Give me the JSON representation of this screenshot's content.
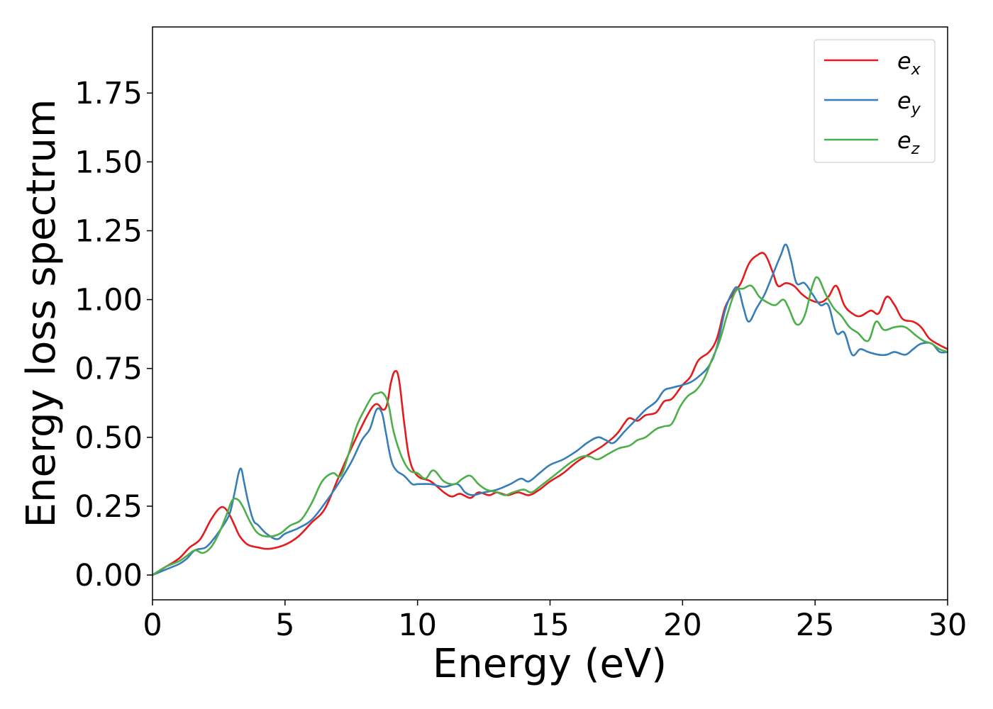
{
  "chart_data": {
    "type": "line",
    "title": "",
    "xlabel": "Energy (eV)",
    "ylabel": "Energy loss spectrum",
    "xlim": [
      0,
      30
    ],
    "ylim": [
      -0.09,
      1.99
    ],
    "xticks": [
      "0",
      "5",
      "10",
      "15",
      "20",
      "25",
      "30"
    ],
    "yticks": [
      "0.00",
      "0.25",
      "0.50",
      "0.75",
      "1.00",
      "1.25",
      "1.50",
      "1.75"
    ],
    "grid": false,
    "legend_position": "top-right",
    "series": [
      {
        "name": "e_x",
        "label_main": "e",
        "label_sub": "x",
        "color": "#e41a1c",
        "x": [
          0,
          0.5,
          1.0,
          1.4,
          1.8,
          2.2,
          2.5,
          2.7,
          2.9,
          3.1,
          3.3,
          3.6,
          4.0,
          4.4,
          5.0,
          5.5,
          6.0,
          6.5,
          7.0,
          7.5,
          8.0,
          8.3,
          8.5,
          8.7,
          8.85,
          9.0,
          9.15,
          9.3,
          9.5,
          9.7,
          10.0,
          10.5,
          11.0,
          11.3,
          11.6,
          12.0,
          12.3,
          12.7,
          13.0,
          13.4,
          13.8,
          14.2,
          14.6,
          15.0,
          15.5,
          16.0,
          16.5,
          17.0,
          17.5,
          17.8,
          18.0,
          18.3,
          18.6,
          19.0,
          19.3,
          19.6,
          20.0,
          20.3,
          20.6,
          21.0,
          21.3,
          21.6,
          21.9,
          22.2,
          22.5,
          22.8,
          23.1,
          23.4,
          23.6,
          23.9,
          24.2,
          24.5,
          24.8,
          25.2,
          25.5,
          25.8,
          26.1,
          26.4,
          26.7,
          27.1,
          27.4,
          27.7,
          28.0,
          28.3,
          28.7,
          29.0,
          29.3,
          29.6,
          30.0
        ],
        "y": [
          0.0,
          0.03,
          0.06,
          0.1,
          0.13,
          0.2,
          0.24,
          0.245,
          0.22,
          0.18,
          0.14,
          0.11,
          0.1,
          0.095,
          0.11,
          0.14,
          0.19,
          0.24,
          0.35,
          0.46,
          0.56,
          0.61,
          0.62,
          0.6,
          0.62,
          0.7,
          0.74,
          0.71,
          0.55,
          0.42,
          0.36,
          0.34,
          0.3,
          0.285,
          0.295,
          0.28,
          0.3,
          0.29,
          0.3,
          0.29,
          0.3,
          0.29,
          0.31,
          0.34,
          0.37,
          0.41,
          0.44,
          0.47,
          0.51,
          0.55,
          0.57,
          0.56,
          0.58,
          0.59,
          0.63,
          0.64,
          0.69,
          0.72,
          0.78,
          0.81,
          0.86,
          0.97,
          1.02,
          1.06,
          1.13,
          1.16,
          1.165,
          1.1,
          1.05,
          1.06,
          1.05,
          1.02,
          1.0,
          0.99,
          1.01,
          1.05,
          0.98,
          0.95,
          0.94,
          0.96,
          0.95,
          1.01,
          0.98,
          0.93,
          0.92,
          0.9,
          0.86,
          0.84,
          0.82
        ]
      },
      {
        "name": "e_y",
        "label_main": "e",
        "label_sub": "y",
        "color": "#377eb8",
        "x": [
          0,
          0.5,
          1.0,
          1.3,
          1.6,
          2.0,
          2.3,
          2.6,
          2.9,
          3.1,
          3.25,
          3.35,
          3.45,
          3.6,
          3.8,
          4.0,
          4.3,
          4.7,
          5.0,
          5.5,
          6.0,
          6.5,
          7.0,
          7.5,
          7.9,
          8.2,
          8.45,
          8.65,
          8.8,
          9.0,
          9.2,
          9.5,
          9.8,
          10.0,
          10.5,
          11.0,
          11.5,
          11.8,
          12.1,
          12.5,
          13.0,
          13.5,
          13.9,
          14.2,
          14.6,
          15.0,
          15.5,
          16.0,
          16.4,
          16.8,
          17.1,
          17.4,
          17.8,
          18.2,
          18.6,
          19.0,
          19.3,
          19.6,
          20.0,
          20.3,
          20.6,
          21.0,
          21.3,
          21.6,
          21.9,
          22.1,
          22.3,
          22.5,
          22.8,
          23.1,
          23.4,
          23.7,
          23.9,
          24.1,
          24.3,
          24.6,
          24.9,
          25.2,
          25.5,
          25.8,
          26.1,
          26.4,
          26.7,
          27.0,
          27.4,
          27.7,
          28.0,
          28.4,
          28.7,
          29.0,
          29.4,
          29.7,
          30.0
        ],
        "y": [
          0.0,
          0.02,
          0.04,
          0.06,
          0.09,
          0.1,
          0.13,
          0.17,
          0.22,
          0.3,
          0.37,
          0.385,
          0.34,
          0.27,
          0.2,
          0.18,
          0.15,
          0.13,
          0.15,
          0.17,
          0.2,
          0.26,
          0.33,
          0.41,
          0.49,
          0.53,
          0.6,
          0.59,
          0.52,
          0.42,
          0.38,
          0.36,
          0.33,
          0.33,
          0.33,
          0.32,
          0.33,
          0.3,
          0.29,
          0.3,
          0.31,
          0.33,
          0.35,
          0.34,
          0.37,
          0.4,
          0.42,
          0.45,
          0.48,
          0.5,
          0.49,
          0.48,
          0.52,
          0.56,
          0.6,
          0.63,
          0.67,
          0.68,
          0.69,
          0.7,
          0.72,
          0.76,
          0.83,
          0.96,
          1.03,
          1.04,
          0.97,
          0.92,
          0.97,
          1.02,
          1.09,
          1.16,
          1.2,
          1.14,
          1.06,
          1.06,
          1.02,
          0.98,
          0.98,
          0.88,
          0.88,
          0.8,
          0.82,
          0.81,
          0.8,
          0.8,
          0.81,
          0.8,
          0.82,
          0.84,
          0.84,
          0.81,
          0.81
        ]
      },
      {
        "name": "e_z",
        "label_main": "e",
        "label_sub": "z",
        "color": "#4daf4a",
        "x": [
          0,
          0.5,
          1.0,
          1.3,
          1.6,
          1.9,
          2.2,
          2.5,
          2.8,
          3.0,
          3.2,
          3.4,
          3.7,
          4.0,
          4.4,
          4.8,
          5.2,
          5.6,
          6.0,
          6.4,
          6.8,
          7.1,
          7.4,
          7.7,
          8.0,
          8.3,
          8.5,
          8.7,
          8.9,
          9.1,
          9.4,
          9.7,
          10.0,
          10.3,
          10.6,
          11.0,
          11.4,
          11.7,
          12.0,
          12.3,
          12.6,
          13.0,
          13.3,
          13.6,
          14.0,
          14.3,
          14.6,
          15.0,
          15.4,
          15.8,
          16.2,
          16.5,
          16.8,
          17.2,
          17.6,
          18.0,
          18.3,
          18.6,
          19.0,
          19.3,
          19.6,
          19.9,
          20.2,
          20.5,
          20.8,
          21.1,
          21.4,
          21.7,
          22.0,
          22.3,
          22.6,
          22.9,
          23.2,
          23.5,
          23.8,
          24.0,
          24.3,
          24.6,
          24.9,
          25.1,
          25.4,
          25.7,
          26.0,
          26.3,
          26.6,
          27.0,
          27.3,
          27.6,
          28.0,
          28.4,
          28.8,
          29.1,
          29.4,
          29.7,
          30.0
        ],
        "y": [
          0.0,
          0.03,
          0.05,
          0.07,
          0.09,
          0.08,
          0.1,
          0.15,
          0.22,
          0.27,
          0.275,
          0.25,
          0.19,
          0.15,
          0.14,
          0.15,
          0.18,
          0.2,
          0.26,
          0.34,
          0.37,
          0.36,
          0.44,
          0.54,
          0.6,
          0.65,
          0.66,
          0.66,
          0.62,
          0.52,
          0.43,
          0.38,
          0.37,
          0.35,
          0.38,
          0.34,
          0.33,
          0.35,
          0.36,
          0.33,
          0.31,
          0.3,
          0.29,
          0.3,
          0.31,
          0.3,
          0.32,
          0.35,
          0.38,
          0.41,
          0.43,
          0.43,
          0.42,
          0.44,
          0.46,
          0.47,
          0.49,
          0.5,
          0.53,
          0.54,
          0.55,
          0.61,
          0.65,
          0.67,
          0.71,
          0.78,
          0.85,
          0.95,
          1.03,
          1.04,
          1.05,
          1.01,
          0.99,
          0.98,
          1.0,
          0.97,
          0.91,
          0.94,
          1.05,
          1.08,
          1.02,
          0.97,
          0.94,
          0.9,
          0.88,
          0.85,
          0.92,
          0.89,
          0.9,
          0.9,
          0.87,
          0.85,
          0.84,
          0.82,
          0.81
        ]
      }
    ]
  }
}
